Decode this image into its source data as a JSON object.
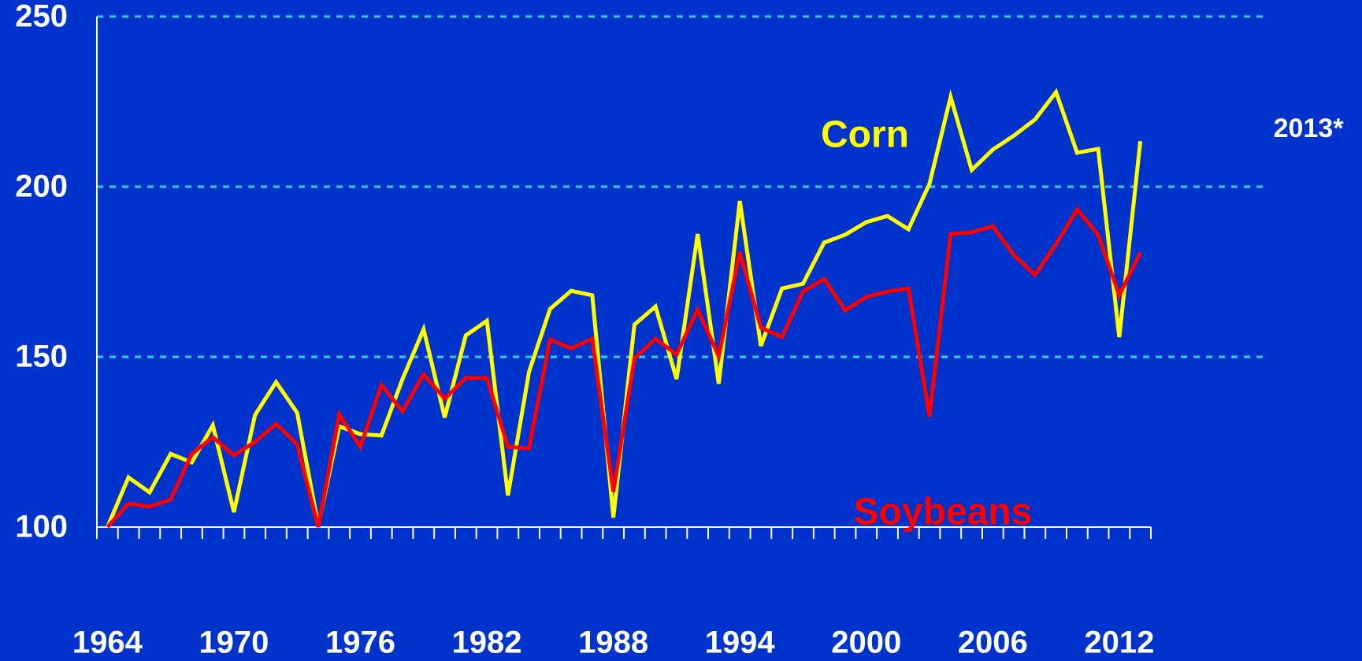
{
  "chart_data": {
    "type": "line",
    "x": [
      1964,
      1965,
      1966,
      1967,
      1968,
      1969,
      1970,
      1971,
      1972,
      1973,
      1974,
      1975,
      1976,
      1977,
      1978,
      1979,
      1980,
      1981,
      1982,
      1983,
      1984,
      1985,
      1986,
      1987,
      1988,
      1989,
      1990,
      1991,
      1992,
      1993,
      1994,
      1995,
      1996,
      1997,
      1998,
      1999,
      2000,
      2001,
      2002,
      2003,
      2004,
      2005,
      2006,
      2007,
      2008,
      2009,
      2010,
      2011,
      2012,
      2013
    ],
    "series": [
      {
        "name": "Corn",
        "color": "#ffff00",
        "values": [
          100,
          114.6,
          110.2,
          121.5,
          119,
          129.9,
          104.4,
          132.9,
          142.6,
          133.6,
          100.5,
          129.6,
          127.3,
          126.9,
          143.5,
          158.1,
          132.2,
          156.3,
          160.6,
          109.3,
          145.6,
          164.1,
          169.4,
          168.1,
          102.8,
          159.5,
          164.8,
          143.5,
          186.1,
          142.1,
          195.8,
          153.2,
          170.1,
          171.5,
          183.6,
          185.9,
          189.6,
          191.4,
          187.5,
          200.9,
          226.4,
          204.9,
          210.9,
          215,
          219.7,
          227.8,
          210,
          211.1,
          155.8,
          213.4
        ]
      },
      {
        "name": "Soybeans",
        "color": "#ff0000",
        "values": [
          100,
          106.9,
          106,
          108.1,
          121.5,
          126.4,
          121.1,
          125,
          130.3,
          124.3,
          100,
          133.1,
          123.6,
          141.7,
          134,
          144.9,
          137.7,
          143.8,
          143.8,
          123.6,
          123.1,
          155.1,
          152.5,
          155.3,
          110.4,
          149.5,
          155.3,
          150.7,
          163.9,
          150.2,
          180.8,
          158.6,
          155.8,
          169.2,
          172.9,
          163.7,
          167.6,
          169.2,
          170.1,
          132.4,
          186.1,
          186.6,
          188.4,
          179.9,
          174.1,
          183.1,
          193.3,
          185.9,
          168.1,
          180.6
        ]
      }
    ],
    "annotations": [
      "2013*"
    ],
    "xlim": [
      1963.5,
      2013.5
    ],
    "xticks": [
      1964,
      1970,
      1976,
      1982,
      1988,
      1994,
      2000,
      2006,
      2012
    ],
    "xminorticks": [
      1963.5,
      1964.5,
      1965.5,
      1966.5,
      1967.5,
      1968.5,
      1969.5,
      1970.5,
      1971.5,
      1972.5,
      1973.5,
      1974.5,
      1975.5,
      1976.5,
      1977.5,
      1978.5,
      1979.5,
      1980.5,
      1981.5,
      1982.5,
      1983.5,
      1984.5,
      1985.5,
      1986.5,
      1987.5,
      1988.5,
      1989.5,
      1990.5,
      1991.5,
      1992.5,
      1993.5,
      1994.5,
      1995.5,
      1996.5,
      1997.5,
      1998.5,
      1999.5,
      2000.5,
      2001.5,
      2002.5,
      2003.5,
      2004.5,
      2005.5,
      2006.5,
      2007.5,
      2008.5,
      2009.5,
      2010.5,
      2011.5,
      2012.5,
      2013.5
    ],
    "ylim": [
      100,
      250
    ],
    "yticks": [
      100,
      150,
      200,
      250
    ],
    "grid": true
  }
}
